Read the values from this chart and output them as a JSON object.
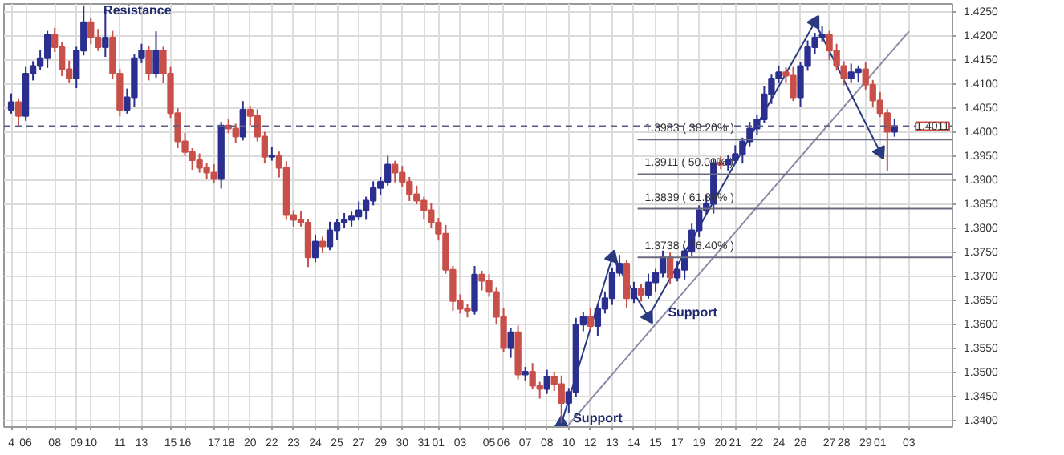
{
  "chart_data": {
    "type": "candlestick",
    "categories": [
      "4",
      null,
      "06",
      null,
      null,
      null,
      "08",
      null,
      null,
      "09",
      null,
      "10",
      null,
      null,
      null,
      "11",
      null,
      null,
      "13",
      null,
      null,
      null,
      "15",
      null,
      "16",
      null,
      null,
      null,
      "17",
      null,
      "18",
      null,
      null,
      "20",
      null,
      null,
      "22",
      null,
      null,
      "23",
      null,
      null,
      "24",
      null,
      null,
      "25",
      null,
      null,
      "27",
      null,
      null,
      "29",
      null,
      null,
      "30",
      null,
      null,
      "31",
      null,
      "01",
      null,
      null,
      "03",
      null,
      null,
      null,
      "05",
      null,
      "06",
      null,
      null,
      "07",
      null,
      null,
      "08",
      null,
      null,
      "10",
      null,
      null,
      "12",
      null,
      null,
      "13",
      null,
      null,
      "14",
      null,
      null,
      "15",
      null,
      null,
      "17",
      null,
      null,
      "19",
      null,
      null,
      "20",
      null,
      "21",
      null,
      null,
      "22",
      null,
      null,
      "24",
      null,
      null,
      "26",
      null,
      null,
      null,
      "27",
      null,
      "28",
      null,
      null,
      "29",
      null,
      "01",
      null,
      null,
      null,
      "03"
    ],
    "ohlc": [
      [
        1.4045,
        1.4079,
        1.4037,
        1.4061
      ],
      [
        1.4061,
        1.4069,
        1.4012,
        1.4032
      ],
      [
        1.4032,
        1.4134,
        1.4022,
        1.412
      ],
      [
        1.412,
        1.4146,
        1.4106,
        1.4136
      ],
      [
        1.4136,
        1.417,
        1.4128,
        1.4152
      ],
      [
        1.4152,
        1.4209,
        1.4132,
        1.4201
      ],
      [
        1.4201,
        1.4215,
        1.4165,
        1.4175
      ],
      [
        1.4175,
        1.4185,
        1.4115,
        1.4129
      ],
      [
        1.4129,
        1.4147,
        1.4102,
        1.411
      ],
      [
        1.411,
        1.4176,
        1.409,
        1.4168
      ],
      [
        1.4168,
        1.4262,
        1.4158,
        1.4227
      ],
      [
        1.4227,
        1.4237,
        1.4181,
        1.4195
      ],
      [
        1.4195,
        1.4213,
        1.4167,
        1.4175
      ],
      [
        1.4175,
        1.4255,
        1.4155,
        1.4195
      ],
      [
        1.4195,
        1.4209,
        1.411,
        1.412
      ],
      [
        1.412,
        1.413,
        1.4031,
        1.4045
      ],
      [
        1.4045,
        1.4089,
        1.4037,
        1.4071
      ],
      [
        1.4071,
        1.416,
        1.4051,
        1.4152
      ],
      [
        1.4152,
        1.4182,
        1.4142,
        1.4168
      ],
      [
        1.4168,
        1.4178,
        1.4106,
        1.412
      ],
      [
        1.412,
        1.4208,
        1.4112,
        1.4168
      ],
      [
        1.4168,
        1.4176,
        1.41,
        1.412
      ],
      [
        1.412,
        1.4134,
        1.4028,
        1.4038
      ],
      [
        1.4038,
        1.4048,
        1.3965,
        1.3979
      ],
      [
        1.3979,
        1.3997,
        1.3949,
        1.3957
      ],
      [
        1.3957,
        1.3965,
        1.392,
        1.394
      ],
      [
        1.394,
        1.3954,
        1.3914,
        1.3924
      ],
      [
        1.3924,
        1.3934,
        1.39,
        1.3914
      ],
      [
        1.3914,
        1.3932,
        1.3893,
        1.3901
      ],
      [
        1.3901,
        1.402,
        1.3881,
        1.4012
      ],
      [
        1.4012,
        1.4026,
        1.3996,
        1.4006
      ],
      [
        1.4006,
        1.4016,
        1.3975,
        1.3989
      ],
      [
        1.3989,
        1.4063,
        1.3981,
        1.4045
      ],
      [
        1.4045,
        1.4053,
        1.4012,
        1.4032
      ],
      [
        1.4032,
        1.4046,
        1.3979,
        1.3989
      ],
      [
        1.3989,
        1.3999,
        1.3933,
        1.3947
      ],
      [
        1.3947,
        1.3968,
        1.3939,
        1.395
      ],
      [
        1.395,
        1.3958,
        1.3904,
        1.3924
      ],
      [
        1.3924,
        1.3938,
        1.3816,
        1.3826
      ],
      [
        1.3826,
        1.3836,
        1.3802,
        1.3816
      ],
      [
        1.3816,
        1.3834,
        1.3802,
        1.381
      ],
      [
        1.381,
        1.3818,
        1.3718,
        1.3738
      ],
      [
        1.3738,
        1.3785,
        1.3728,
        1.3771
      ],
      [
        1.3771,
        1.3781,
        1.3747,
        1.3761
      ],
      [
        1.3761,
        1.3812,
        1.3753,
        1.3794
      ],
      [
        1.3794,
        1.3818,
        1.3774,
        1.381
      ],
      [
        1.381,
        1.383,
        1.38,
        1.3816
      ],
      [
        1.3816,
        1.3833,
        1.3802,
        1.3823
      ],
      [
        1.3823,
        1.3854,
        1.3815,
        1.3836
      ],
      [
        1.3836,
        1.3864,
        1.3816,
        1.3856
      ],
      [
        1.3856,
        1.3896,
        1.3846,
        1.3882
      ],
      [
        1.3882,
        1.3905,
        1.3868,
        1.3895
      ],
      [
        1.3895,
        1.3949,
        1.3887,
        1.3931
      ],
      [
        1.3931,
        1.3939,
        1.3894,
        1.3914
      ],
      [
        1.3914,
        1.3928,
        1.3885,
        1.3895
      ],
      [
        1.3895,
        1.3905,
        1.3855,
        1.3869
      ],
      [
        1.3869,
        1.3887,
        1.3848,
        1.3856
      ],
      [
        1.3856,
        1.3864,
        1.3816,
        1.3836
      ],
      [
        1.3836,
        1.385,
        1.38,
        1.381
      ],
      [
        1.381,
        1.382,
        1.3773,
        1.3787
      ],
      [
        1.3787,
        1.3805,
        1.3704,
        1.3712
      ],
      [
        1.3712,
        1.372,
        1.3627,
        1.3647
      ],
      [
        1.3647,
        1.3661,
        1.3621,
        1.3631
      ],
      [
        1.3631,
        1.3641,
        1.3613,
        1.3627
      ],
      [
        1.3627,
        1.372,
        1.3619,
        1.3702
      ],
      [
        1.3702,
        1.371,
        1.3669,
        1.3689
      ],
      [
        1.3689,
        1.3703,
        1.3656,
        1.3666
      ],
      [
        1.3666,
        1.3676,
        1.36,
        1.3614
      ],
      [
        1.3614,
        1.3632,
        1.3541,
        1.3549
      ],
      [
        1.3549,
        1.359,
        1.3529,
        1.3582
      ],
      [
        1.3582,
        1.3596,
        1.3484,
        1.3494
      ],
      [
        1.3494,
        1.351,
        1.348,
        1.35
      ],
      [
        1.35,
        1.3518,
        1.3463,
        1.3471
      ],
      [
        1.3471,
        1.3479,
        1.3444,
        1.3464
      ],
      [
        1.3464,
        1.3504,
        1.3454,
        1.349
      ],
      [
        1.349,
        1.35,
        1.346,
        1.3474
      ],
      [
        1.3474,
        1.3492,
        1.3393,
        1.3435
      ],
      [
        1.3435,
        1.3466,
        1.3415,
        1.3458
      ],
      [
        1.3458,
        1.3612,
        1.3448,
        1.3598
      ],
      [
        1.3598,
        1.3624,
        1.3584,
        1.3614
      ],
      [
        1.3614,
        1.3632,
        1.3587,
        1.3595
      ],
      [
        1.3595,
        1.3639,
        1.3575,
        1.3631
      ],
      [
        1.3631,
        1.3667,
        1.3621,
        1.3653
      ],
      [
        1.3653,
        1.3716,
        1.3639,
        1.3706
      ],
      [
        1.3706,
        1.3743,
        1.3698,
        1.3725
      ],
      [
        1.3725,
        1.3733,
        1.3633,
        1.3653
      ],
      [
        1.3653,
        1.3687,
        1.3643,
        1.3673
      ],
      [
        1.3673,
        1.3683,
        1.3646,
        1.366
      ],
      [
        1.366,
        1.3704,
        1.3652,
        1.3686
      ],
      [
        1.3686,
        1.3714,
        1.3666,
        1.3706
      ],
      [
        1.3706,
        1.3752,
        1.3696,
        1.3738
      ],
      [
        1.3738,
        1.3748,
        1.3682,
        1.3696
      ],
      [
        1.3696,
        1.373,
        1.3688,
        1.3712
      ],
      [
        1.3712,
        1.3759,
        1.3692,
        1.3751
      ],
      [
        1.3751,
        1.3808,
        1.3741,
        1.3794
      ],
      [
        1.3794,
        1.3846,
        1.378,
        1.3836
      ],
      [
        1.3836,
        1.3867,
        1.3828,
        1.3849
      ],
      [
        1.3849,
        1.3942,
        1.3829,
        1.3934
      ],
      [
        1.3934,
        1.3948,
        1.3921,
        1.3931
      ],
      [
        1.3931,
        1.395,
        1.3917,
        1.394
      ],
      [
        1.394,
        1.3971,
        1.3932,
        1.3953
      ],
      [
        1.3953,
        1.3987,
        1.3933,
        1.3979
      ],
      [
        1.3979,
        1.402,
        1.3969,
        1.4006
      ],
      [
        1.4006,
        1.4035,
        1.3992,
        1.4025
      ],
      [
        1.4025,
        1.4095,
        1.4017,
        1.4077
      ],
      [
        1.4077,
        1.4118,
        1.4057,
        1.411
      ],
      [
        1.411,
        1.4137,
        1.41,
        1.4123
      ],
      [
        1.4123,
        1.4133,
        1.4102,
        1.4116
      ],
      [
        1.4116,
        1.4134,
        1.4063,
        1.4071
      ],
      [
        1.4071,
        1.4144,
        1.4051,
        1.4136
      ],
      [
        1.4136,
        1.4189,
        1.4126,
        1.4175
      ],
      [
        1.4175,
        1.4205,
        1.4161,
        1.4195
      ],
      [
        1.4195,
        1.4219,
        1.4187,
        1.4201
      ],
      [
        1.4201,
        1.4209,
        1.4148,
        1.4168
      ],
      [
        1.4168,
        1.4182,
        1.4126,
        1.4136
      ],
      [
        1.4136,
        1.4146,
        1.4096,
        1.411
      ],
      [
        1.411,
        1.4141,
        1.4102,
        1.4123
      ],
      [
        1.4123,
        1.4137,
        1.4103,
        1.4129
      ],
      [
        1.4129,
        1.4143,
        1.4087,
        1.4097
      ],
      [
        1.4097,
        1.4107,
        1.405,
        1.4064
      ],
      [
        1.4064,
        1.4082,
        1.403,
        1.4038
      ],
      [
        1.4038,
        1.4046,
        1.3918,
        1.3999
      ],
      [
        1.3999,
        1.4025,
        1.3989,
        1.4011
      ],
      null,
      null
    ],
    "colors": [
      "#2b2f8f",
      "#c8504a",
      "#2b2f8f",
      "#2b2f8f",
      "#2b2f8f",
      "#2b2f8f",
      "#c8504a",
      "#c8504a",
      "#c8504a",
      "#2b2f8f",
      "#2b2f8f",
      "#c8504a",
      "#c8504a",
      "#2b2f8f",
      "#c8504a",
      "#c8504a",
      "#2b2f8f",
      "#2b2f8f",
      "#2b2f8f",
      "#c8504a",
      "#2b2f8f",
      "#c8504a",
      "#c8504a",
      "#c8504a",
      "#c8504a",
      "#c8504a",
      "#c8504a",
      "#c8504a",
      "#c8504a",
      "#2b2f8f",
      "#c8504a",
      "#c8504a",
      "#2b2f8f",
      "#c8504a",
      "#c8504a",
      "#c8504a",
      "#2b2f8f",
      "#c8504a",
      "#c8504a",
      "#c8504a",
      "#c8504a",
      "#c8504a",
      "#2b2f8f",
      "#c8504a",
      "#2b2f8f",
      "#2b2f8f",
      "#2b2f8f",
      "#2b2f8f",
      "#2b2f8f",
      "#2b2f8f",
      "#2b2f8f",
      "#2b2f8f",
      "#2b2f8f",
      "#c8504a",
      "#c8504a",
      "#c8504a",
      "#c8504a",
      "#c8504a",
      "#c8504a",
      "#c8504a",
      "#c8504a",
      "#c8504a",
      "#c8504a",
      "#c8504a",
      "#2b2f8f",
      "#c8504a",
      "#c8504a",
      "#c8504a",
      "#c8504a",
      "#2b2f8f",
      "#c8504a",
      "#2b2f8f",
      "#c8504a",
      "#c8504a",
      "#2b2f8f",
      "#c8504a",
      "#c8504a",
      "#2b2f8f",
      "#2b2f8f",
      "#2b2f8f",
      "#c8504a",
      "#2b2f8f",
      "#2b2f8f",
      "#2b2f8f",
      "#2b2f8f",
      "#c8504a",
      "#2b2f8f",
      "#c8504a",
      "#2b2f8f",
      "#2b2f8f",
      "#2b2f8f",
      "#c8504a",
      "#2b2f8f",
      "#2b2f8f",
      "#2b2f8f",
      "#2b2f8f",
      "#2b2f8f",
      "#2b2f8f",
      "#c8504a",
      "#2b2f8f",
      "#2b2f8f",
      "#2b2f8f",
      "#2b2f8f",
      "#2b2f8f",
      "#2b2f8f",
      "#2b2f8f",
      "#2b2f8f",
      "#c8504a",
      "#c8504a",
      "#2b2f8f",
      "#2b2f8f",
      "#2b2f8f",
      "#2b2f8f",
      "#c8504a",
      "#c8504a",
      "#c8504a",
      "#2b2f8f",
      "#2b2f8f",
      "#c8504a",
      "#c8504a",
      "#c8504a",
      "#c8504a",
      "#2b2f8f",
      null,
      null
    ],
    "series": [
      {
        "type": "line",
        "color": "#8a8aa8",
        "values": [
          null,
          null,
          null,
          null,
          null,
          null,
          null,
          null,
          null,
          null,
          null,
          null,
          null,
          null,
          null,
          null,
          null,
          null,
          null,
          null,
          null,
          null,
          null,
          null,
          null,
          null,
          null,
          null,
          null,
          null,
          null,
          null,
          null,
          null,
          null,
          null,
          null,
          null,
          null,
          null,
          null,
          null,
          null,
          null,
          null,
          null,
          null,
          null,
          null,
          null,
          null,
          null,
          null,
          null,
          null,
          null,
          null,
          null,
          null,
          null,
          null,
          null,
          null,
          null,
          null,
          null,
          null,
          null,
          null,
          null,
          null,
          null,
          null,
          null,
          null,
          null,
          null,
          1.339,
          null,
          null,
          null,
          null,
          null,
          null,
          null,
          null,
          null,
          null,
          null,
          null,
          null,
          null,
          null,
          null,
          null,
          null,
          null,
          null,
          null,
          null,
          null,
          null,
          null,
          null,
          null,
          null,
          null,
          null,
          null,
          null,
          null,
          null,
          null,
          null,
          null,
          null,
          null,
          null,
          null,
          null,
          null,
          null,
          null,
          null,
          1.4208
        ]
      },
      {
        "type": "line",
        "color": "#2a3a80",
        "marker": "triangle",
        "values": [
          null,
          null,
          null,
          null,
          null,
          null,
          null,
          null,
          null,
          null,
          null,
          null,
          null,
          null,
          null,
          null,
          null,
          null,
          null,
          null,
          null,
          null,
          null,
          null,
          null,
          null,
          null,
          null,
          null,
          null,
          null,
          null,
          null,
          null,
          null,
          null,
          null,
          null,
          null,
          null,
          null,
          null,
          null,
          null,
          null,
          null,
          null,
          null,
          null,
          null,
          null,
          null,
          null,
          null,
          null,
          null,
          null,
          null,
          null,
          null,
          null,
          null,
          null,
          null,
          null,
          null,
          null,
          null,
          null,
          null,
          null,
          null,
          null,
          null,
          null,
          null,
          1.3393,
          null,
          null,
          null,
          null,
          null,
          null,
          1.3738,
          null,
          null,
          null,
          null,
          1.3614,
          null,
          null,
          null,
          null,
          null,
          null,
          null,
          null,
          null,
          null,
          null,
          null,
          null,
          null,
          null,
          null,
          null,
          null,
          null,
          null,
          null,
          null,
          1.4227,
          null,
          null,
          null,
          null,
          null,
          null,
          null,
          null,
          1.3957,
          null,
          null,
          null,
          null
        ]
      }
    ],
    "ylim": [
      1.3385,
      1.4265
    ],
    "yticks": [
      {
        "value": 1.34,
        "label": "1.3400"
      },
      {
        "value": 1.345,
        "label": "1.3450"
      },
      {
        "value": 1.35,
        "label": "1.3500"
      },
      {
        "value": 1.355,
        "label": "1.3550"
      },
      {
        "value": 1.36,
        "label": "1.3600"
      },
      {
        "value": 1.365,
        "label": "1.3650"
      },
      {
        "value": 1.37,
        "label": "1.3700"
      },
      {
        "value": 1.375,
        "label": "1.3750"
      },
      {
        "value": 1.38,
        "label": "1.3800"
      },
      {
        "value": 1.385,
        "label": "1.3850"
      },
      {
        "value": 1.39,
        "label": "1.3900"
      },
      {
        "value": 1.395,
        "label": "1.3950"
      },
      {
        "value": 1.4,
        "label": "1.4000"
      },
      {
        "value": 1.405,
        "label": "1.4050"
      },
      {
        "value": 1.41,
        "label": "1.4100"
      },
      {
        "value": 1.415,
        "label": "1.4150"
      },
      {
        "value": 1.42,
        "label": "1.4200"
      },
      {
        "value": 1.425,
        "label": "1.4250"
      }
    ],
    "ref_lines": [
      {
        "axis": "y",
        "value": 1.4011,
        "label": "1.4011",
        "color": "#5a5a8a",
        "line_style": "dashed"
      },
      {
        "axis": "y",
        "value": 1.3983,
        "label": "1.3983 ( 38.20% )",
        "color": "#6a6a80",
        "line_style": "solid"
      },
      {
        "axis": "y",
        "value": 1.3911,
        "label": "1.3911 ( 50.00% )",
        "color": "#6a6a80",
        "line_style": "solid"
      },
      {
        "axis": "y",
        "value": 1.3839,
        "label": "1.3839 ( 61.80% )",
        "color": "#6a6a80",
        "line_style": "solid"
      },
      {
        "axis": "y",
        "value": 1.3738,
        "label": "1.3738 ( 76.40% )",
        "color": "#6a6a80",
        "line_style": "solid"
      }
    ],
    "annotations": [
      "Resistance",
      "Support",
      "Support"
    ],
    "grid": true
  }
}
